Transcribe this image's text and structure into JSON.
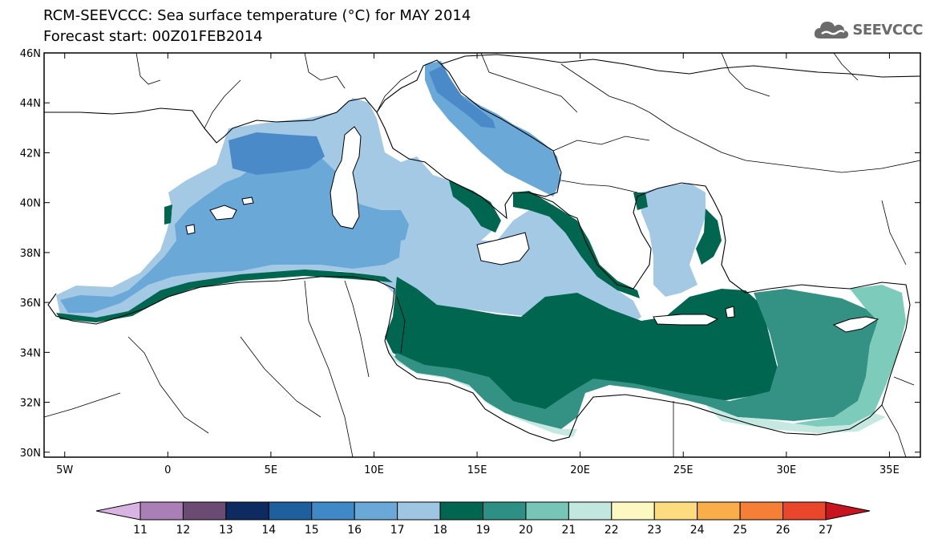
{
  "title_line1": "RCM-SEEVCCC: Sea surface temperature (°C) for MAY 2014",
  "title_line2": "Forecast start: 00Z01FEB2014",
  "logo_text": "SEEVCCC",
  "map": {
    "projection": "lat-lon",
    "lon_range": [
      -6,
      36.5
    ],
    "lat_range": [
      29.8,
      46
    ],
    "lon_ticks": [
      {
        "value": -5,
        "label": "5W"
      },
      {
        "value": 0,
        "label": "0"
      },
      {
        "value": 5,
        "label": "5E"
      },
      {
        "value": 10,
        "label": "10E"
      },
      {
        "value": 15,
        "label": "15E"
      },
      {
        "value": 20,
        "label": "20E"
      },
      {
        "value": 25,
        "label": "25E"
      },
      {
        "value": 30,
        "label": "30E"
      },
      {
        "value": 35,
        "label": "35E"
      }
    ],
    "lat_ticks": [
      {
        "value": 46,
        "label": "46N"
      },
      {
        "value": 44,
        "label": "44N"
      },
      {
        "value": 42,
        "label": "42N"
      },
      {
        "value": 40,
        "label": "40N"
      },
      {
        "value": 38,
        "label": "38N"
      },
      {
        "value": 36,
        "label": "36N"
      },
      {
        "value": 34,
        "label": "34N"
      },
      {
        "value": 32,
        "label": "32N"
      },
      {
        "value": 30,
        "label": "30N"
      }
    ]
  },
  "colorbar": {
    "labels": [
      "11",
      "12",
      "13",
      "14",
      "15",
      "16",
      "17",
      "18",
      "19",
      "20",
      "21",
      "22",
      "23",
      "24",
      "25",
      "26",
      "27"
    ],
    "colors": [
      "#d8b4e2",
      "#a97fb6",
      "#6a4c73",
      "#0d2b61",
      "#1e5f9e",
      "#3f8ac6",
      "#6aa8d8",
      "#9ec6e3",
      "#00664f",
      "#2e9084",
      "#76c5b6",
      "#c1e7df",
      "#fdf8c2",
      "#fddb7f",
      "#f9ae4a",
      "#f57f37",
      "#e8472c",
      "#c8141e"
    ]
  },
  "colors": {
    "c16": "#4a8ac8",
    "c17": "#6aa8d8",
    "c18": "#a3c9e4",
    "c19": "#00664f",
    "c20": "#349285",
    "c21": "#7ccbbb",
    "c22": "#c5e9e1"
  }
}
